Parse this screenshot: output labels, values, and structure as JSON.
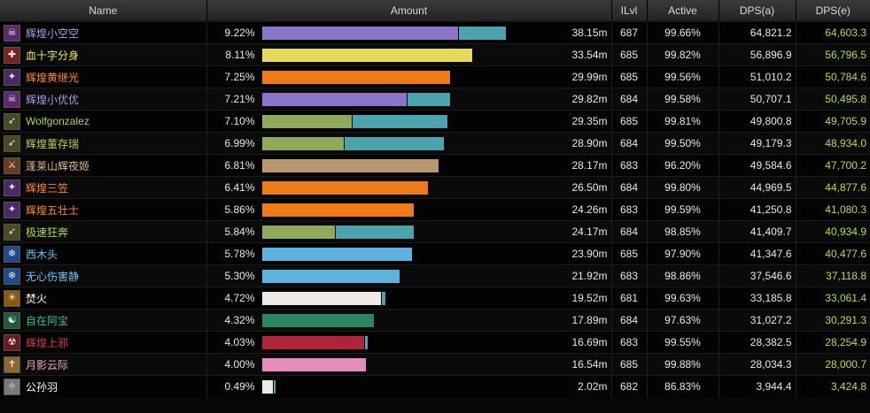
{
  "header": {
    "name": "Name",
    "amount": "Amount",
    "ilvl": "ILvl",
    "active": "Active",
    "dps_a": "DPS(a)",
    "dps_e": "DPS(e)"
  },
  "colors": {
    "dps_e_text": "#b7dd49",
    "pet_bar": "#4ba3ad"
  },
  "rows": [
    {
      "name": "辉煌小空空",
      "name_color": "#a89ce0",
      "icon": "warlock-class-icon",
      "icon_bg": "#5a2a6a",
      "icon_glyph": "☠",
      "pct": "9.22%",
      "main": 0.671,
      "pet": 0.16,
      "bar_color": "#8b75c7",
      "total": "38.15m",
      "ilvl": "687",
      "active": "99.66%",
      "dps_a": "64,821.2",
      "dps_e": "64,603.3"
    },
    {
      "name": "血十字分身",
      "name_color": "#f2ea6e",
      "icon": "rogue-class-icon",
      "icon_bg": "#7a2222",
      "icon_glyph": "✚",
      "pct": "8.11%",
      "main": 0.718,
      "pet": 0,
      "bar_color": "#e6d95e",
      "total": "33.54m",
      "ilvl": "685",
      "active": "99.82%",
      "dps_a": "56,896.9",
      "dps_e": "56,796.5"
    },
    {
      "name": "辉煌黄继光",
      "name_color": "#ff8a22",
      "icon": "druid-class-icon",
      "icon_bg": "#4a2a66",
      "icon_glyph": "✦",
      "pct": "7.25%",
      "main": 0.642,
      "pet": 0,
      "bar_color": "#f07a16",
      "total": "29.99m",
      "ilvl": "685",
      "active": "99.56%",
      "dps_a": "51,010.2",
      "dps_e": "50,784.6"
    },
    {
      "name": "辉煌小优优",
      "name_color": "#a89ce0",
      "icon": "warlock-class-icon",
      "icon_bg": "#5a2a6a",
      "icon_glyph": "☠",
      "pct": "7.21%",
      "main": 0.494,
      "pet": 0.145,
      "bar_color": "#8b75c7",
      "total": "29.82m",
      "ilvl": "684",
      "active": "99.58%",
      "dps_a": "50,707.1",
      "dps_e": "50,495.8"
    },
    {
      "name": "Wolfgonzalez",
      "name_color": "#b0d45a",
      "icon": "hunter-class-icon",
      "icon_bg": "#4a4a22",
      "icon_glyph": "➶",
      "pct": "7.10%",
      "main": 0.306,
      "pet": 0.324,
      "bar_color": "#8eaa5a",
      "total": "29.35m",
      "ilvl": "685",
      "active": "99.81%",
      "dps_a": "49,800.8",
      "dps_e": "49,705.9"
    },
    {
      "name": "辉煌董存瑞",
      "name_color": "#b0d45a",
      "icon": "hunter-class-icon",
      "icon_bg": "#4a4a22",
      "icon_glyph": "➶",
      "pct": "6.99%",
      "main": 0.279,
      "pet": 0.339,
      "bar_color": "#8eaa5a",
      "total": "28.90m",
      "ilvl": "684",
      "active": "99.50%",
      "dps_a": "49,179.3",
      "dps_e": "48,934.0"
    },
    {
      "name": "蓬莱山辉夜姬",
      "name_color": "#d9b98a",
      "icon": "warrior-class-icon",
      "icon_bg": "#6a3a1a",
      "icon_glyph": "⚔",
      "pct": "6.81%",
      "main": 0.603,
      "pet": 0,
      "bar_color": "#b99770",
      "total": "28.17m",
      "ilvl": "683",
      "active": "96.20%",
      "dps_a": "49,584.6",
      "dps_e": "47,700.2"
    },
    {
      "name": "辉煌三笠",
      "name_color": "#ff8a22",
      "icon": "druid-class-icon",
      "icon_bg": "#4a2a66",
      "icon_glyph": "✦",
      "pct": "6.41%",
      "main": 0.567,
      "pet": 0,
      "bar_color": "#f07a16",
      "total": "26.50m",
      "ilvl": "684",
      "active": "99.80%",
      "dps_a": "44,969.5",
      "dps_e": "44,877.6"
    },
    {
      "name": "辉煌五壮士",
      "name_color": "#ff8a22",
      "icon": "druid-class-icon",
      "icon_bg": "#4a2a66",
      "icon_glyph": "✦",
      "pct": "5.86%",
      "main": 0.518,
      "pet": 0,
      "bar_color": "#f07a16",
      "total": "24.26m",
      "ilvl": "683",
      "active": "99.59%",
      "dps_a": "41,250.8",
      "dps_e": "41,080.3"
    },
    {
      "name": "极速狂奔",
      "name_color": "#b0d45a",
      "icon": "hunter-class-icon",
      "icon_bg": "#4a4a22",
      "icon_glyph": "➶",
      "pct": "5.84%",
      "main": 0.248,
      "pet": 0.267,
      "bar_color": "#8eaa5a",
      "total": "24.17m",
      "ilvl": "684",
      "active": "98.85%",
      "dps_a": "41,409.7",
      "dps_e": "40,934.9"
    },
    {
      "name": "西木头",
      "name_color": "#6cc4ec",
      "icon": "mage-class-icon",
      "icon_bg": "#1e4a8a",
      "icon_glyph": "❄",
      "pct": "5.78%",
      "main": 0.512,
      "pet": 0,
      "bar_color": "#5eb3de",
      "total": "23.90m",
      "ilvl": "685",
      "active": "97.90%",
      "dps_a": "41,347.6",
      "dps_e": "40,477.6"
    },
    {
      "name": "无心伤害静",
      "name_color": "#6cc4ec",
      "icon": "mage-class-icon",
      "icon_bg": "#1e4a8a",
      "icon_glyph": "❄",
      "pct": "5.30%",
      "main": 0.47,
      "pet": 0,
      "bar_color": "#5eb3de",
      "total": "21.92m",
      "ilvl": "683",
      "active": "98.86%",
      "dps_a": "37,546.6",
      "dps_e": "37,118.8"
    },
    {
      "name": "焚火",
      "name_color": "#ffffff",
      "icon": "priest-class-icon",
      "icon_bg": "#8a5a12",
      "icon_glyph": "☀",
      "pct": "4.72%",
      "main": 0.406,
      "pet": 0.012,
      "bar_color": "#efeae4",
      "total": "19.52m",
      "ilvl": "681",
      "active": "99.63%",
      "dps_a": "33,185.8",
      "dps_e": "33,061.4"
    },
    {
      "name": "自在阿宝",
      "name_color": "#3cbf8a",
      "icon": "monk-class-icon",
      "icon_bg": "#1e5a3a",
      "icon_glyph": "☯",
      "pct": "4.32%",
      "main": 0.382,
      "pet": 0,
      "bar_color": "#2a8560",
      "total": "17.89m",
      "ilvl": "684",
      "active": "97.63%",
      "dps_a": "31,027.2",
      "dps_e": "30,291.3"
    },
    {
      "name": "辉煌上邪",
      "name_color": "#d8364a",
      "icon": "death-knight-class-icon",
      "icon_bg": "#6a1a1a",
      "icon_glyph": "☢",
      "pct": "4.03%",
      "main": 0.348,
      "pet": 0.008,
      "bar_color": "#b0243a",
      "total": "16.69m",
      "ilvl": "683",
      "active": "99.55%",
      "dps_a": "28,382.5",
      "dps_e": "28,254.9"
    },
    {
      "name": "月影云际",
      "name_color": "#f0a8d0",
      "icon": "paladin-class-icon",
      "icon_bg": "#8a6a2a",
      "icon_glyph": "✝",
      "pct": "4.00%",
      "main": 0.354,
      "pet": 0,
      "bar_color": "#e58cba",
      "total": "16.54m",
      "ilvl": "685",
      "active": "99.88%",
      "dps_a": "28,034.3",
      "dps_e": "28,000.7"
    },
    {
      "name": "公孙羽",
      "name_color": "#ffffff",
      "icon": "priest-class-icon",
      "icon_bg": "#7a7a7a",
      "icon_glyph": "✧",
      "pct": "0.49%",
      "main": 0.036,
      "pet": 0.006,
      "bar_color": "#efeae4",
      "total": "2.02m",
      "ilvl": "682",
      "active": "86.83%",
      "dps_a": "3,944.4",
      "dps_e": "3,424.8"
    }
  ]
}
